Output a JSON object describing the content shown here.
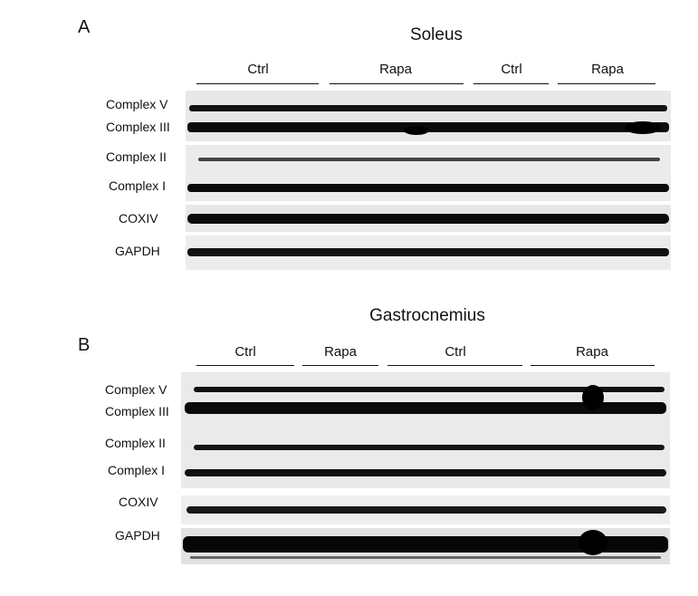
{
  "panels": [
    {
      "letter": "A",
      "title": "Soleus",
      "groups": [
        "Ctrl",
        "Rapa",
        "Ctrl",
        "Rapa"
      ],
      "rows": [
        "Complex V",
        "Complex III",
        "Complex II",
        "Complex I",
        "COXIV",
        "GAPDH"
      ]
    },
    {
      "letter": "B",
      "title": "Gastrocnemius",
      "groups": [
        "Ctrl",
        "Rapa",
        "Ctrl",
        "Rapa"
      ],
      "rows": [
        "Complex V",
        "Complex III",
        "Complex II",
        "Complex I",
        "COXIV",
        "GAPDH"
      ]
    }
  ],
  "colors": {
    "band": "#0d0d0d",
    "membrane": "#e6e6e6",
    "text": "#111111"
  }
}
